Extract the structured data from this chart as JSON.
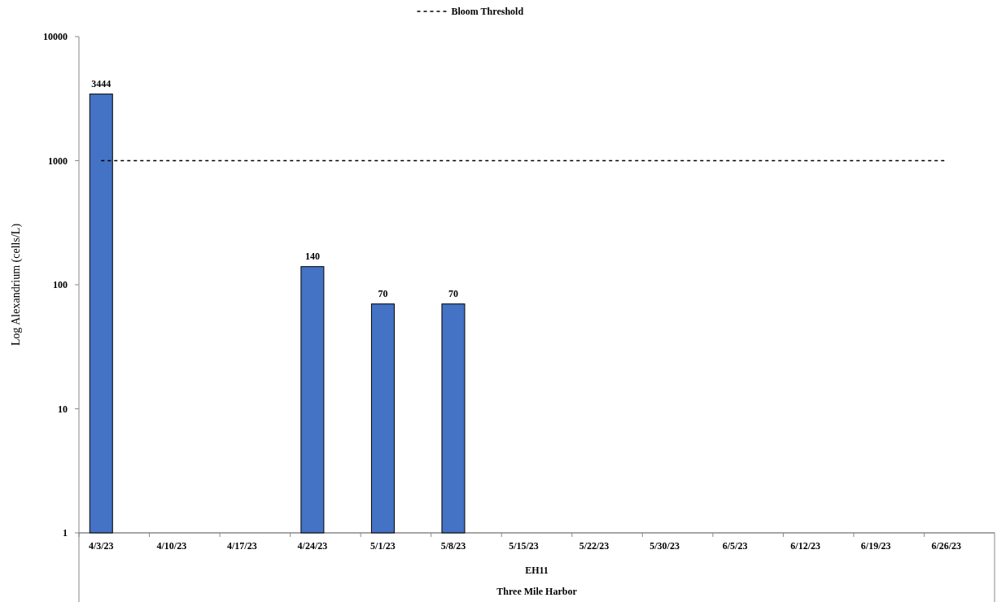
{
  "chart_data": {
    "type": "bar",
    "ylabel": "Log Alexandrium (cells/L)",
    "xlabel": "EH11",
    "categories": [
      "4/3/23",
      "4/10/23",
      "4/17/23",
      "4/24/23",
      "5/1/23",
      "5/8/23",
      "5/15/23",
      "5/22/23",
      "5/30/23",
      "6/5/23",
      "6/12/23",
      "6/19/23",
      "6/26/23"
    ],
    "series": [
      {
        "color": "#4472c4",
        "values": [
          3444,
          null,
          null,
          140,
          70,
          70,
          null,
          null,
          null,
          null,
          null,
          null,
          null
        ]
      }
    ],
    "data_labels": true,
    "log": true,
    "ylim": [
      1,
      10000
    ],
    "yticks": [
      1,
      10,
      100,
      1000,
      10000
    ],
    "grid": false,
    "legend": "top",
    "ref_lines": [
      {
        "axis": "y",
        "value": 1000,
        "label": "Bloom Threshold",
        "color": "#000000",
        "line_style": "dashed"
      }
    ],
    "annotations": [
      "Three Mile Harbor"
    ]
  }
}
